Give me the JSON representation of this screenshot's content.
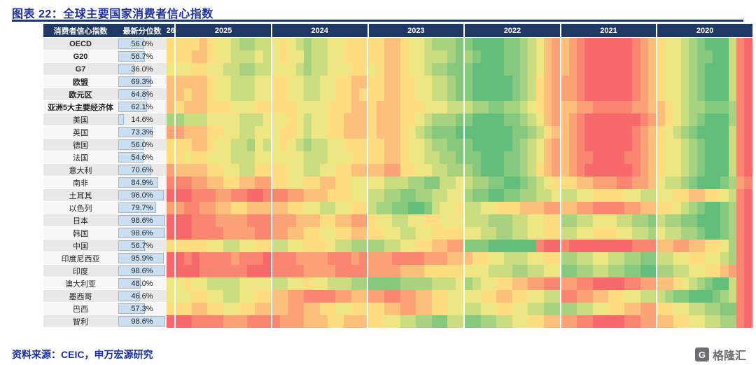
{
  "title": "图表 22：全球主要国家消费者信心指数",
  "source": "资料来源：CEIC，申万宏源研究",
  "watermark": "格隆汇",
  "watermark_icon": "G",
  "colors": {
    "title": "#1b2fa6",
    "rule": "#1f3864",
    "header_bg": "#1f3864",
    "bar_fill": "#cbdff2",
    "bar_border": "#93b9dd",
    "source_text": "#1b2fa6",
    "watermark_gray": "#6d6e71"
  },
  "chart_data": {
    "type": "heatmap",
    "title": "全球主要国家消费者信心指数",
    "header": {
      "index_label": "消费者信心指数",
      "value_label": "最新分位数",
      "first_col_label": "26",
      "year_labels": [
        "2025",
        "2024",
        "2023",
        "2022",
        "2021",
        "2020"
      ]
    },
    "layout": {
      "columns_order": "left=newest (2026) to right=oldest (2020), 12 monthly cells per year group",
      "cell_scale": "digit 0=green (low percentile) to 9=red (high percentile), x=blank",
      "legend": "none"
    },
    "colormap": {
      "low": "#63be7b",
      "mid": "#ffeb84",
      "high": "#f8696b",
      "no_data": "#ffffff"
    },
    "rows": [
      {
        "name": "OECD",
        "bold": true,
        "percentile": 56.0,
        "percentile_label": "56.0%",
        "cells": [
          "5",
          "555654432233",
          "454323344555",
          "556654432221",
          "100001123467",
          "678999999876",
          "544321000389"
        ]
      },
      {
        "name": "G20",
        "bold": true,
        "percentile": 56.7,
        "percentile_label": "56.7%",
        "cells": [
          "5",
          "556654433343",
          "454423344555",
          "556654433321",
          "210001123467",
          "678999999876",
          "544321100389"
        ]
      },
      {
        "name": "G7",
        "bold": true,
        "percentile": 36.0,
        "percentile_label": "36.0%",
        "cells": [
          "4",
          "445544332233",
          "444323344455",
          "456654432211",
          "100001123467",
          "678999999876",
          "544321000389"
        ]
      },
      {
        "name": "欧盟",
        "bold": true,
        "percentile": 69.3,
        "percentile_label": "69.3%",
        "cells": [
          "6",
          "666654433344",
          "554433445566",
          "556655443321",
          "100000123567",
          "778999999876",
          "544321000389"
        ]
      },
      {
        "name": "欧元区",
        "bold": true,
        "percentile": 64.8,
        "percentile_label": "64.8%",
        "cells": [
          "6",
          "656654433344",
          "554433445565",
          "556655443321",
          "100000123567",
          "778999999876",
          "544321000389"
        ]
      },
      {
        "name": "亚洲5大主要经济体",
        "bold": true,
        "percentile": 62.1,
        "percentile_label": "62.1%",
        "cells": [
          "6",
          "566655544455",
          "555444455566",
          "566655544433",
          "322112234567",
          "667788888776",
          "654322111289"
        ]
      },
      {
        "name": "美国",
        "bold": false,
        "percentile": 14.6,
        "percentile_label": "14.6%",
        "cells": [
          "2",
          "233344443334",
          "445434455666",
          "566655432221",
          "100001123467",
          "678999999987",
          "654321000289"
        ]
      },
      {
        "name": "英国",
        "bold": false,
        "percentile": 73.3,
        "percentile_label": "73.3%",
        "cells": [
          "7",
          "766655443344",
          "455434455666",
          "566654321110",
          "000000112356",
          "678999999876",
          "543210000389"
        ]
      },
      {
        "name": "德国",
        "bold": false,
        "percentile": 56.0,
        "percentile_label": "56.0%",
        "cells": [
          "5",
          "556654433243",
          "454323344555",
          "556654432211",
          "100000123467",
          "678999999876",
          "544321000389"
        ]
      },
      {
        "name": "法国",
        "bold": false,
        "percentile": 54.6,
        "percentile_label": "54.6%",
        "cells": [
          "5",
          "545544433344",
          "444433344455",
          "556654433221",
          "110001123467",
          "678899998876",
          "544321000389"
        ]
      },
      {
        "name": "意大利",
        "bold": false,
        "percentile": 70.6,
        "percentile_label": "70.6%",
        "cells": [
          "7",
          "666655443355",
          "554433445566",
          "667755443322",
          "210001123567",
          "678999999876",
          "544321000389"
        ]
      },
      {
        "name": "南非",
        "bold": false,
        "percentile": 84.9,
        "percentile_label": "84.9%",
        "cells": [
          "8",
          "887766556677",
          "554455665544",
          "443332211334",
          "322110012345",
          "556677788776",
          "433210001278"
        ]
      },
      {
        "name": "土耳其",
        "bold": false,
        "percentile": 96.0,
        "percentile_label": "96.0%",
        "cells": [
          "9",
          "998887788998",
          "887766655544",
          "332211223344",
          "211001122334",
          "334455554433",
          "445566554389"
        ]
      },
      {
        "name": "以色列",
        "bold": false,
        "percentile": 79.7,
        "percentile_label": "79.7%",
        "cells": [
          "7",
          "788776655666",
          "665544334455",
          "322110013445",
          "334455566677",
          "667788887766",
          "554321001289"
        ]
      },
      {
        "name": "日本",
        "bold": false,
        "percentile": 98.6,
        "percentile_label": "98.6%",
        "cells": [
          "9",
          "998887777888",
          "777666556677",
          "544334455444",
          "333222334455",
          "223344433221",
          "322110001289"
        ]
      },
      {
        "name": "韩国",
        "bold": false,
        "percentile": 98.6,
        "percentile_label": "98.6%",
        "cells": [
          "9",
          "998888777788",
          "776655445566",
          "554433445555",
          "443322334455",
          "334455544332",
          "433221001289"
        ]
      },
      {
        "name": "中国",
        "bold": false,
        "percentile": 56.7,
        "percentile_label": "56.7%",
        "cells": [
          "5",
          "555544334455",
          "334455543322",
          "223344556677",
          "111000000899",
          "899999999888",
          "667766554289"
        ]
      },
      {
        "name": "印度尼西亚",
        "bold": false,
        "percentile": 95.9,
        "percentile_label": "95.9%",
        "cells": [
          "9",
          "989888878889",
          "888777788878",
          "777888877766",
          "655443334455",
          "223344332211",
          "334455443289"
        ]
      },
      {
        "name": "印度",
        "bold": false,
        "percentile": 98.6,
        "percentile_label": "98.6%",
        "cells": [
          "9",
          "999888888999",
          "888877778888",
          "777766655555",
          "444333223344",
          "112233221100",
          "223344556789"
        ]
      },
      {
        "name": "澳大利亚",
        "bold": false,
        "percentile": 48.0,
        "percentile_label": "48.0%",
        "cells": [
          "4",
          "454433334444",
          "334454433322",
          "111122223334",
          "234455667788",
          "778899998877",
          "665432100389"
        ]
      },
      {
        "name": "墨西哥",
        "bold": false,
        "percentile": 46.6,
        "percentile_label": "46.6%",
        "cells": [
          "4",
          "445544334455",
          "667788887766",
          "778877665544",
          "445566554433",
          "887766554433",
          "321100012389"
        ]
      },
      {
        "name": "巴西",
        "bold": false,
        "percentile": 57.3,
        "percentile_label": "57.3%",
        "cells": [
          "5",
          "556655445566",
          "667766554455",
          "556677665544",
          "334455443322",
          "223344556677",
          "554433221189"
        ]
      },
      {
        "name": "智利",
        "bold": false,
        "percentile": 98.6,
        "percentile_label": "98.6%",
        "cells": [
          "9",
          "998888777888",
          "877766655666",
          "554433221133",
          "112233445566",
          "778899998877",
          "665544332289"
        ]
      }
    ]
  }
}
